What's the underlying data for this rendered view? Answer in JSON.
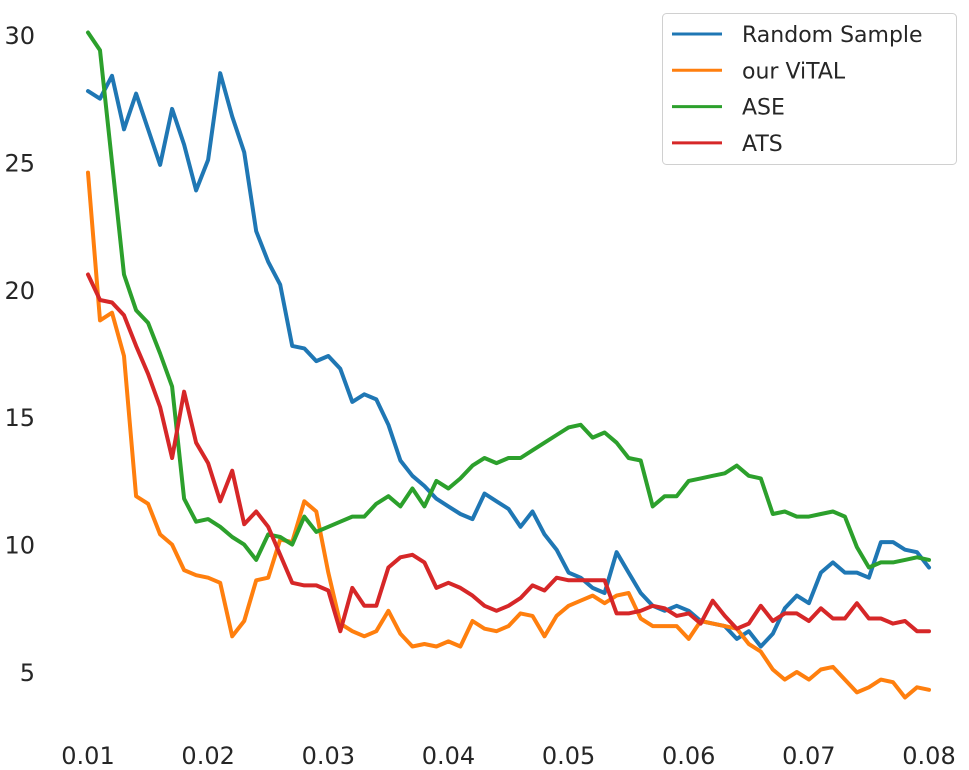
{
  "chart_data": {
    "type": "line",
    "title": "",
    "xlabel": "",
    "ylabel": "",
    "xlim": [
      0.0,
      0.08
    ],
    "ylim": [
      3.0,
      31.0
    ],
    "grid": false,
    "legend_position": "top-right",
    "x_ticks": [
      "0.01",
      "0.02",
      "0.03",
      "0.04",
      "0.05",
      "0.06",
      "0.07",
      "0.08"
    ],
    "y_ticks": [
      "5",
      "10",
      "15",
      "20",
      "25",
      "30"
    ],
    "x_tick_values": [
      0.01,
      0.02,
      0.03,
      0.04,
      0.05,
      0.06,
      0.07,
      0.08
    ],
    "y_tick_values": [
      5,
      10,
      15,
      20,
      25,
      30
    ],
    "x": [
      0.01,
      0.011,
      0.012,
      0.013,
      0.014,
      0.015,
      0.016,
      0.017,
      0.018,
      0.019,
      0.02,
      0.021,
      0.022,
      0.023,
      0.024,
      0.025,
      0.026,
      0.027,
      0.028,
      0.029,
      0.03,
      0.031,
      0.032,
      0.033,
      0.034,
      0.035,
      0.036,
      0.037,
      0.038,
      0.039,
      0.04,
      0.041,
      0.042,
      0.043,
      0.044,
      0.045,
      0.046,
      0.047,
      0.048,
      0.049,
      0.05,
      0.051,
      0.052,
      0.053,
      0.054,
      0.055,
      0.056,
      0.057,
      0.058,
      0.059,
      0.06,
      0.061,
      0.062,
      0.063,
      0.064,
      0.065,
      0.066,
      0.067,
      0.068,
      0.069,
      0.07,
      0.071,
      0.072,
      0.073,
      0.074,
      0.075,
      0.076,
      0.077,
      0.078,
      0.079,
      0.08
    ],
    "series": [
      {
        "name": "Random Sample",
        "color": "#1f77b4",
        "values": [
          27.8,
          27.5,
          28.4,
          26.3,
          27.7,
          26.3,
          24.9,
          27.1,
          25.7,
          23.9,
          25.1,
          28.5,
          26.8,
          25.4,
          22.3,
          21.1,
          20.2,
          17.8,
          17.7,
          17.2,
          17.4,
          16.9,
          15.6,
          15.9,
          15.7,
          14.7,
          13.3,
          12.7,
          12.3,
          11.8,
          11.5,
          11.2,
          11.0,
          12.0,
          11.7,
          11.4,
          10.7,
          11.3,
          10.4,
          9.8,
          8.9,
          8.7,
          8.3,
          8.1,
          9.7,
          8.9,
          8.1,
          7.6,
          7.4,
          7.6,
          7.4,
          7.0,
          6.9,
          6.8,
          6.3,
          6.6,
          6.0,
          6.5,
          7.5,
          8.0,
          7.7,
          8.9,
          9.3,
          8.9,
          8.9,
          8.7,
          10.1,
          10.1,
          9.8,
          9.7,
          9.1
        ]
      },
      {
        "name": "our ViTAL",
        "color": "#ff7f0e",
        "values": [
          24.6,
          18.8,
          19.1,
          17.4,
          11.9,
          11.6,
          10.4,
          10.0,
          9.0,
          8.8,
          8.7,
          8.5,
          6.4,
          7.0,
          8.6,
          8.7,
          10.2,
          10.1,
          11.7,
          11.3,
          8.9,
          6.9,
          6.6,
          6.4,
          6.6,
          7.4,
          6.5,
          6.0,
          6.1,
          6.0,
          6.2,
          6.0,
          7.0,
          6.7,
          6.6,
          6.8,
          7.3,
          7.2,
          6.4,
          7.2,
          7.6,
          7.8,
          8.0,
          7.7,
          8.0,
          8.1,
          7.1,
          6.8,
          6.8,
          6.8,
          6.3,
          7.0,
          6.9,
          6.8,
          6.7,
          6.1,
          5.8,
          5.1,
          4.7,
          5.0,
          4.7,
          5.1,
          5.2,
          4.7,
          4.2,
          4.4,
          4.7,
          4.6,
          4.0,
          4.4,
          4.3
        ]
      },
      {
        "name": "ASE",
        "color": "#2ca02c",
        "values": [
          30.1,
          29.4,
          25.0,
          20.6,
          19.2,
          18.7,
          17.5,
          16.2,
          11.8,
          10.9,
          11.0,
          10.7,
          10.3,
          10.0,
          9.4,
          10.4,
          10.3,
          10.0,
          11.1,
          10.5,
          10.7,
          10.9,
          11.1,
          11.1,
          11.6,
          11.9,
          11.5,
          12.2,
          11.5,
          12.5,
          12.2,
          12.6,
          13.1,
          13.4,
          13.2,
          13.4,
          13.4,
          13.7,
          14.0,
          14.3,
          14.6,
          14.7,
          14.2,
          14.4,
          14.0,
          13.4,
          13.3,
          11.5,
          11.9,
          11.9,
          12.5,
          12.6,
          12.7,
          12.8,
          13.1,
          12.7,
          12.6,
          11.2,
          11.3,
          11.1,
          11.1,
          11.2,
          11.3,
          11.1,
          9.9,
          9.1,
          9.3,
          9.3,
          9.4,
          9.5,
          9.4
        ]
      },
      {
        "name": "ATS",
        "color": "#d62728",
        "values": [
          20.6,
          19.6,
          19.5,
          19.0,
          17.8,
          16.7,
          15.4,
          13.4,
          16.0,
          14.0,
          13.2,
          11.7,
          12.9,
          10.8,
          11.3,
          10.7,
          9.6,
          8.5,
          8.4,
          8.4,
          8.2,
          6.6,
          8.3,
          7.6,
          7.6,
          9.1,
          9.5,
          9.6,
          9.3,
          8.3,
          8.5,
          8.3,
          8.0,
          7.6,
          7.4,
          7.6,
          7.9,
          8.4,
          8.2,
          8.7,
          8.6,
          8.6,
          8.6,
          8.6,
          7.3,
          7.3,
          7.4,
          7.6,
          7.5,
          7.2,
          7.3,
          6.9,
          7.8,
          7.2,
          6.7,
          6.9,
          7.6,
          7.0,
          7.3,
          7.3,
          7.0,
          7.5,
          7.1,
          7.1,
          7.7,
          7.1,
          7.1,
          6.9,
          7.0,
          6.6,
          6.6
        ]
      }
    ]
  }
}
